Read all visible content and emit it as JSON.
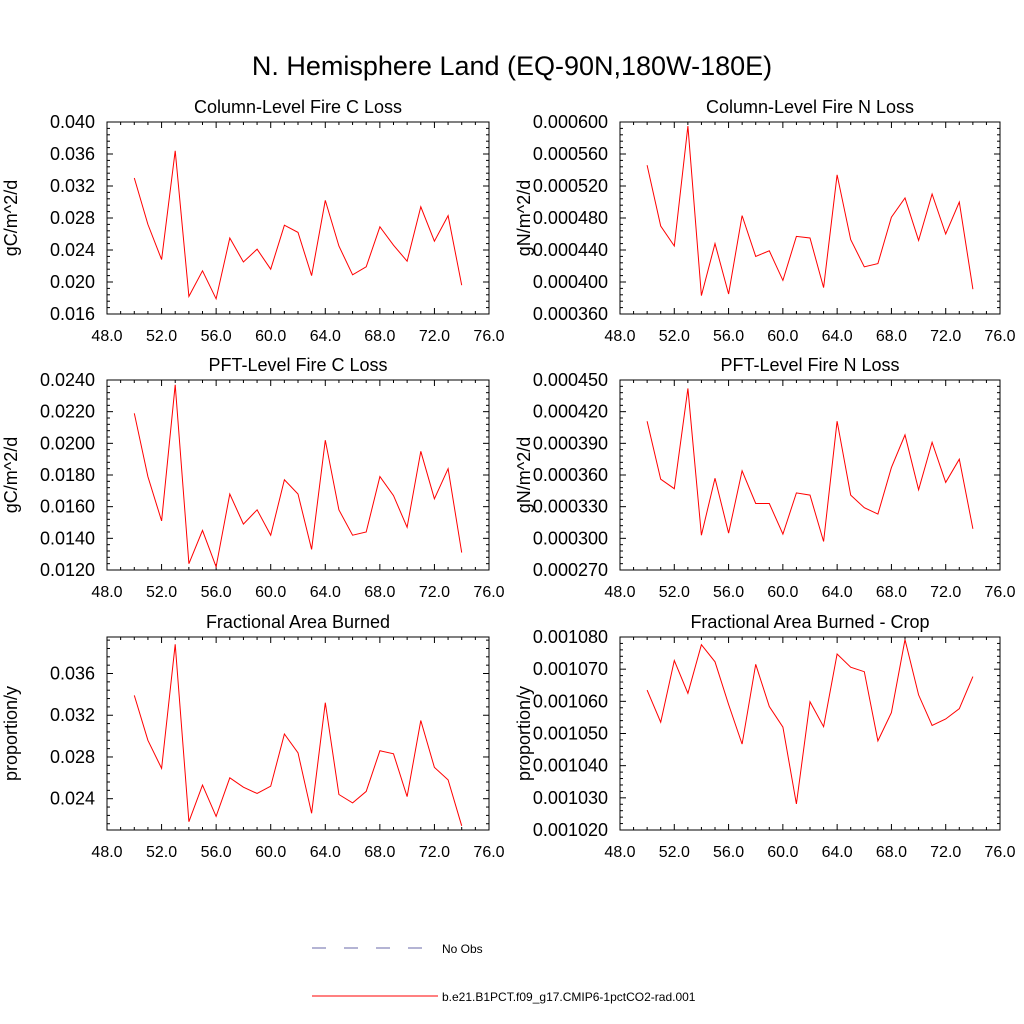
{
  "figure": {
    "title": "N. Hemisphere Land (EQ-90N,180W-180E)",
    "legend": [
      {
        "label": "No Obs",
        "color": "#6a6aa8",
        "style": "dashed"
      },
      {
        "label": "b.e21.B1PCT.f09_g17.CMIP6-1pctCO2-rad.001",
        "color": "#ff0000",
        "style": "solid"
      }
    ]
  },
  "chart_data": [
    {
      "type": "line",
      "title": "Column-Level Fire C Loss",
      "ylabel": "gC/m^2/d",
      "xlim": [
        48,
        76
      ],
      "ylim": [
        0.016,
        0.04
      ],
      "xticks": [
        "48.0",
        "52.0",
        "56.0",
        "60.0",
        "64.0",
        "68.0",
        "72.0",
        "76.0"
      ],
      "yticks": [
        "0.016",
        "0.020",
        "0.024",
        "0.028",
        "0.032",
        "0.036",
        "0.040"
      ],
      "x": [
        50,
        51,
        52,
        53,
        54,
        55,
        56,
        57,
        58,
        59,
        60,
        61,
        62,
        63,
        64,
        65,
        66,
        67,
        68,
        69,
        70,
        71,
        72,
        73,
        74
      ],
      "series": [
        {
          "color": "#ff0000",
          "values": [
            0.033,
            0.0272,
            0.0228,
            0.0364,
            0.0182,
            0.0214,
            0.0179,
            0.0255,
            0.0225,
            0.0241,
            0.0216,
            0.0271,
            0.0262,
            0.0208,
            0.0302,
            0.0245,
            0.0209,
            0.0219,
            0.0269,
            0.0246,
            0.0226,
            0.0294,
            0.0251,
            0.0283,
            0.0196
          ]
        }
      ]
    },
    {
      "type": "line",
      "title": "Column-Level Fire N Loss",
      "ylabel": "gN/m^2/d",
      "xlim": [
        48,
        76
      ],
      "ylim": [
        0.00036,
        0.0006
      ],
      "xticks": [
        "48.0",
        "52.0",
        "56.0",
        "60.0",
        "64.0",
        "68.0",
        "72.0",
        "76.0"
      ],
      "yticks": [
        "0.000360",
        "0.000400",
        "0.000440",
        "0.000480",
        "0.000520",
        "0.000560",
        "0.000600"
      ],
      "x": [
        50,
        51,
        52,
        53,
        54,
        55,
        56,
        57,
        58,
        59,
        60,
        61,
        62,
        63,
        64,
        65,
        66,
        67,
        68,
        69,
        70,
        71,
        72,
        73,
        74
      ],
      "series": [
        {
          "color": "#ff0000",
          "values": [
            0.000546,
            0.00047,
            0.000445,
            0.000595,
            0.000383,
            0.000448,
            0.000385,
            0.000483,
            0.000432,
            0.000439,
            0.000402,
            0.000457,
            0.000455,
            0.000393,
            0.000534,
            0.000453,
            0.000419,
            0.000423,
            0.000481,
            0.000505,
            0.000452,
            0.00051,
            0.00046,
            0.0005,
            0.000391
          ]
        }
      ]
    },
    {
      "type": "line",
      "title": "PFT-Level Fire C Loss",
      "ylabel": "gC/m^2/d",
      "xlim": [
        48,
        76
      ],
      "ylim": [
        0.012,
        0.024
      ],
      "xticks": [
        "48.0",
        "52.0",
        "56.0",
        "60.0",
        "64.0",
        "68.0",
        "72.0",
        "76.0"
      ],
      "yticks": [
        "0.0120",
        "0.0140",
        "0.0160",
        "0.0180",
        "0.0200",
        "0.0220",
        "0.0240"
      ],
      "x": [
        50,
        51,
        52,
        53,
        54,
        55,
        56,
        57,
        58,
        59,
        60,
        61,
        62,
        63,
        64,
        65,
        66,
        67,
        68,
        69,
        70,
        71,
        72,
        73,
        74
      ],
      "series": [
        {
          "color": "#ff0000",
          "values": [
            0.0219,
            0.0179,
            0.0151,
            0.0237,
            0.0124,
            0.0145,
            0.0122,
            0.0168,
            0.0149,
            0.0158,
            0.0142,
            0.0177,
            0.0168,
            0.0133,
            0.0202,
            0.0158,
            0.0142,
            0.0144,
            0.0179,
            0.0167,
            0.0147,
            0.0195,
            0.0165,
            0.0184,
            0.0131
          ]
        }
      ]
    },
    {
      "type": "line",
      "title": "PFT-Level Fire N Loss",
      "ylabel": "gN/m^2/d",
      "xlim": [
        48,
        76
      ],
      "ylim": [
        0.00027,
        0.00045
      ],
      "xticks": [
        "48.0",
        "52.0",
        "56.0",
        "60.0",
        "64.0",
        "68.0",
        "72.0",
        "76.0"
      ],
      "yticks": [
        "0.000270",
        "0.000300",
        "0.000330",
        "0.000360",
        "0.000390",
        "0.000420",
        "0.000450"
      ],
      "x": [
        50,
        51,
        52,
        53,
        54,
        55,
        56,
        57,
        58,
        59,
        60,
        61,
        62,
        63,
        64,
        65,
        66,
        67,
        68,
        69,
        70,
        71,
        72,
        73,
        74
      ],
      "series": [
        {
          "color": "#ff0000",
          "values": [
            0.000411,
            0.000356,
            0.000347,
            0.000442,
            0.000303,
            0.000357,
            0.000305,
            0.000364,
            0.000333,
            0.000333,
            0.000304,
            0.000343,
            0.000341,
            0.000297,
            0.000411,
            0.000341,
            0.000329,
            0.000323,
            0.000367,
            0.000398,
            0.000346,
            0.000391,
            0.000353,
            0.000375,
            0.000309
          ]
        }
      ]
    },
    {
      "type": "line",
      "title": "Fractional Area Burned",
      "ylabel": "proportion/y",
      "xlim": [
        48,
        76
      ],
      "ylim": [
        0.021,
        0.0395
      ],
      "xticks": [
        "48.0",
        "52.0",
        "56.0",
        "60.0",
        "64.0",
        "68.0",
        "72.0",
        "76.0"
      ],
      "yticks": [
        "0.024",
        "0.028",
        "0.032",
        "0.036"
      ],
      "x": [
        50,
        51,
        52,
        53,
        54,
        55,
        56,
        57,
        58,
        59,
        60,
        61,
        62,
        63,
        64,
        65,
        66,
        67,
        68,
        69,
        70,
        71,
        72,
        73,
        74
      ],
      "series": [
        {
          "color": "#ff0000",
          "values": [
            0.0339,
            0.0296,
            0.0269,
            0.0388,
            0.0218,
            0.0253,
            0.0223,
            0.026,
            0.0251,
            0.0245,
            0.0252,
            0.0302,
            0.0284,
            0.0226,
            0.0332,
            0.0244,
            0.0236,
            0.0247,
            0.0286,
            0.0283,
            0.0242,
            0.0315,
            0.027,
            0.0258,
            0.0214
          ]
        }
      ]
    },
    {
      "type": "line",
      "title": "Fractional Area Burned - Crop",
      "ylabel": "proportion/y",
      "xlim": [
        48,
        76
      ],
      "ylim": [
        0.00102,
        0.00108
      ],
      "xticks": [
        "48.0",
        "52.0",
        "56.0",
        "60.0",
        "64.0",
        "68.0",
        "72.0",
        "76.0"
      ],
      "yticks": [
        "0.001020",
        "0.001030",
        "0.001040",
        "0.001050",
        "0.001060",
        "0.001070",
        "0.001080"
      ],
      "x": [
        50,
        51,
        52,
        53,
        54,
        55,
        56,
        57,
        58,
        59,
        60,
        61,
        62,
        63,
        64,
        65,
        66,
        67,
        68,
        69,
        70,
        71,
        72,
        73,
        74
      ],
      "series": [
        {
          "color": "#ff0000",
          "values": [
            0.0010635,
            0.0010535,
            0.0010727,
            0.0010625,
            0.0010776,
            0.0010723,
            0.001059,
            0.0010467,
            0.0010715,
            0.0010584,
            0.001052,
            0.0010281,
            0.0010599,
            0.0010521,
            0.0010747,
            0.0010706,
            0.0010692,
            0.0010477,
            0.0010565,
            0.0010792,
            0.001062,
            0.0010525,
            0.0010545,
            0.0010577,
            0.0010677
          ]
        }
      ]
    }
  ]
}
